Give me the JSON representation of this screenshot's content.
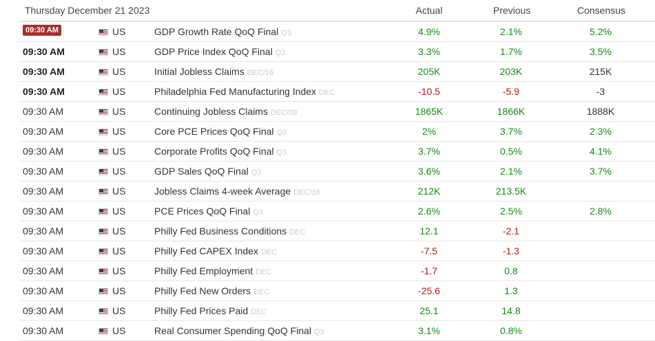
{
  "header": {
    "date": "Thursday December 21 2023",
    "actual_label": "Actual",
    "previous_label": "Previous",
    "consensus_label": "Consensus"
  },
  "colors": {
    "positive": "#128a12",
    "negative": "#b21a1a",
    "neutral": "#333333",
    "live_badge": "#a8302c"
  },
  "rows": [
    {
      "time": "09:30 AM",
      "style": "live",
      "country": "US",
      "event": "GDP Growth Rate QoQ Final",
      "period": "Q3",
      "actual": "4.9%",
      "actual_color": "green",
      "previous": "2.1%",
      "previous_color": "green",
      "consensus": "5.2%",
      "consensus_color": "green"
    },
    {
      "time": "09:30 AM",
      "style": "bold",
      "country": "US",
      "event": "GDP Price Index QoQ Final",
      "period": "Q3",
      "actual": "3.3%",
      "actual_color": "green",
      "previous": "1.7%",
      "previous_color": "green",
      "consensus": "3.5%",
      "consensus_color": "green"
    },
    {
      "time": "09:30 AM",
      "style": "bold",
      "country": "US",
      "event": "Initial Jobless Claims",
      "period": "DEC/16",
      "actual": "205K",
      "actual_color": "green",
      "previous": "203K",
      "previous_color": "green",
      "consensus": "215K",
      "consensus_color": "neutral"
    },
    {
      "time": "09:30 AM",
      "style": "bold",
      "country": "US",
      "event": "Philadelphia Fed Manufacturing Index",
      "period": "DEC",
      "actual": "-10.5",
      "actual_color": "red",
      "previous": "-5.9",
      "previous_color": "red",
      "consensus": "-3",
      "consensus_color": "neutral"
    },
    {
      "time": "09:30 AM",
      "style": "normal",
      "country": "US",
      "event": "Continuing Jobless Claims",
      "period": "DEC/09",
      "actual": "1865K",
      "actual_color": "green",
      "previous": "1866K",
      "previous_color": "green",
      "consensus": "1888K",
      "consensus_color": "neutral"
    },
    {
      "time": "09:30 AM",
      "style": "normal",
      "country": "US",
      "event": "Core PCE Prices QoQ Final",
      "period": "Q3",
      "actual": "2%",
      "actual_color": "green",
      "previous": "3.7%",
      "previous_color": "green",
      "consensus": "2.3%",
      "consensus_color": "green"
    },
    {
      "time": "09:30 AM",
      "style": "normal",
      "country": "US",
      "event": "Corporate Profits QoQ Final",
      "period": "Q3",
      "actual": "3.7%",
      "actual_color": "green",
      "previous": "0.5%",
      "previous_color": "green",
      "consensus": "4.1%",
      "consensus_color": "green"
    },
    {
      "time": "09:30 AM",
      "style": "normal",
      "country": "US",
      "event": "GDP Sales QoQ Final",
      "period": "Q3",
      "actual": "3.6%",
      "actual_color": "green",
      "previous": "2.1%",
      "previous_color": "green",
      "consensus": "3.7%",
      "consensus_color": "green"
    },
    {
      "time": "09:30 AM",
      "style": "normal",
      "country": "US",
      "event": "Jobless Claims 4-week Average",
      "period": "DEC/16",
      "actual": "212K",
      "actual_color": "green",
      "previous": "213.5K",
      "previous_color": "green",
      "consensus": "",
      "consensus_color": "neutral"
    },
    {
      "time": "09:30 AM",
      "style": "normal",
      "country": "US",
      "event": "PCE Prices QoQ Final",
      "period": "Q3",
      "actual": "2.6%",
      "actual_color": "green",
      "previous": "2.5%",
      "previous_color": "green",
      "consensus": "2.8%",
      "consensus_color": "green"
    },
    {
      "time": "09:30 AM",
      "style": "normal",
      "country": "US",
      "event": "Philly Fed Business Conditions",
      "period": "DEC",
      "actual": "12.1",
      "actual_color": "green",
      "previous": "-2.1",
      "previous_color": "red",
      "consensus": "",
      "consensus_color": "neutral"
    },
    {
      "time": "09:30 AM",
      "style": "normal",
      "country": "US",
      "event": "Philly Fed CAPEX Index",
      "period": "DEC",
      "actual": "-7.5",
      "actual_color": "red",
      "previous": "-1.3",
      "previous_color": "red",
      "consensus": "",
      "consensus_color": "neutral"
    },
    {
      "time": "09:30 AM",
      "style": "normal",
      "country": "US",
      "event": "Philly Fed Employment",
      "period": "DEC",
      "actual": "-1.7",
      "actual_color": "red",
      "previous": "0.8",
      "previous_color": "green",
      "consensus": "",
      "consensus_color": "neutral"
    },
    {
      "time": "09:30 AM",
      "style": "normal",
      "country": "US",
      "event": "Philly Fed New Orders",
      "period": "DEC",
      "actual": "-25.6",
      "actual_color": "red",
      "previous": "1.3",
      "previous_color": "green",
      "consensus": "",
      "consensus_color": "neutral"
    },
    {
      "time": "09:30 AM",
      "style": "normal",
      "country": "US",
      "event": "Philly Fed Prices Paid",
      "period": "DEC",
      "actual": "25.1",
      "actual_color": "green",
      "previous": "14.8",
      "previous_color": "green",
      "consensus": "",
      "consensus_color": "neutral"
    },
    {
      "time": "09:30 AM",
      "style": "normal",
      "country": "US",
      "event": "Real Consumer Spending QoQ Final",
      "period": "Q3",
      "actual": "3.1%",
      "actual_color": "green",
      "previous": "0.8%",
      "previous_color": "green",
      "consensus": "",
      "consensus_color": "neutral"
    }
  ]
}
